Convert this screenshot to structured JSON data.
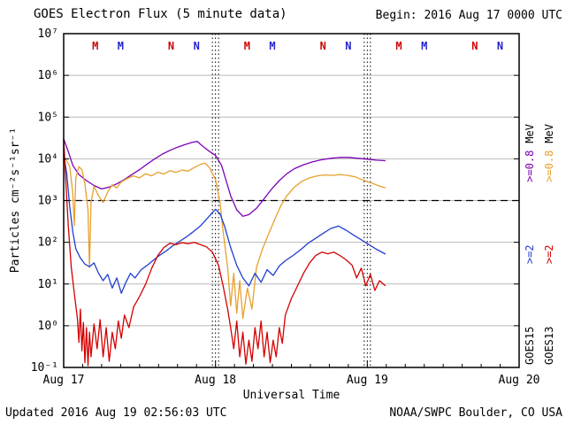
{
  "header": {
    "title": "GOES Electron Flux (5 minute data)",
    "begin_label": "Begin: 2016 Aug 17 0000 UTC"
  },
  "footer": {
    "updated": "Updated 2016 Aug 19 02:56:03 UTC",
    "source": "NOAA/SWPC Boulder, CO USA"
  },
  "chart_data": {
    "type": "line",
    "title": "GOES Electron Flux (5 minute data)",
    "xlabel": "Universal Time",
    "ylabel": "Particles cm⁻²s⁻¹sr⁻¹",
    "x_unit_days_since": "2016 Aug 17 0000 UTC",
    "xlim": [
      0,
      3
    ],
    "y_scale": "log",
    "y_log_range": [
      -1,
      7
    ],
    "grid": true,
    "grid_color": "#b8b8b8",
    "x_ticks": [
      {
        "t": 0,
        "label": "Aug 17"
      },
      {
        "t": 1,
        "label": "Aug 18"
      },
      {
        "t": 2,
        "label": "Aug 19"
      },
      {
        "t": 3,
        "label": "Aug 20"
      }
    ],
    "y_tick_labels": [
      "10⁻¹",
      "10⁰",
      "10¹",
      "10²",
      "10³",
      "10⁴",
      "10⁵",
      "10⁶",
      "10⁷"
    ],
    "threshold": {
      "value": 1000,
      "style": "dashed"
    },
    "day_boundaries": [
      1,
      2
    ],
    "satellite_markers": [
      {
        "t": 0.208,
        "letter": "M",
        "color": "#cc0000"
      },
      {
        "t": 0.375,
        "letter": "M",
        "color": "#2222cc"
      },
      {
        "t": 0.708,
        "letter": "N",
        "color": "#cc0000"
      },
      {
        "t": 0.875,
        "letter": "N",
        "color": "#2222cc"
      },
      {
        "t": 1.208,
        "letter": "M",
        "color": "#cc0000"
      },
      {
        "t": 1.375,
        "letter": "M",
        "color": "#2222cc"
      },
      {
        "t": 1.708,
        "letter": "N",
        "color": "#cc0000"
      },
      {
        "t": 1.875,
        "letter": "N",
        "color": "#2222cc"
      },
      {
        "t": 2.208,
        "letter": "M",
        "color": "#cc0000"
      },
      {
        "t": 2.375,
        "letter": "M",
        "color": "#2222cc"
      },
      {
        "t": 2.708,
        "letter": "N",
        "color": "#cc0000"
      },
      {
        "t": 2.875,
        "letter": "N",
        "color": "#2222cc"
      }
    ],
    "legend": {
      "goes15": {
        "name": "GOES15",
        "ge2": ">=2",
        "ge08": ">=0.8",
        "unit": "MeV",
        "ge2_color": "#1f3fd1",
        "ge08_color": "#7b00b4"
      },
      "goes13": {
        "name": "GOES13",
        "ge2": ">=2",
        "ge08": ">=0.8",
        "unit": "MeV",
        "ge2_color": "#d40000",
        "ge08_color": "#e8a02b"
      }
    },
    "series": [
      {
        "id": "goes15-ge08",
        "name": "GOES15 >=0.8 MeV",
        "color": "#7b00b4",
        "points": [
          [
            0,
            30000
          ],
          [
            0.03,
            15000
          ],
          [
            0.06,
            7000
          ],
          [
            0.1,
            4200
          ],
          [
            0.15,
            3000
          ],
          [
            0.2,
            2300
          ],
          [
            0.25,
            1900
          ],
          [
            0.3,
            2100
          ],
          [
            0.35,
            2500
          ],
          [
            0.4,
            3200
          ],
          [
            0.45,
            4200
          ],
          [
            0.5,
            5500
          ],
          [
            0.55,
            7500
          ],
          [
            0.6,
            10000
          ],
          [
            0.65,
            13000
          ],
          [
            0.7,
            16000
          ],
          [
            0.75,
            19000
          ],
          [
            0.8,
            22000
          ],
          [
            0.85,
            25000
          ],
          [
            0.88,
            26000
          ],
          [
            0.91,
            21000
          ],
          [
            0.95,
            16000
          ],
          [
            1.0,
            12000
          ],
          [
            1.04,
            7000
          ],
          [
            1.07,
            3000
          ],
          [
            1.1,
            1300
          ],
          [
            1.14,
            600
          ],
          [
            1.18,
            420
          ],
          [
            1.22,
            460
          ],
          [
            1.27,
            650
          ],
          [
            1.32,
            1100
          ],
          [
            1.37,
            1900
          ],
          [
            1.42,
            3000
          ],
          [
            1.47,
            4400
          ],
          [
            1.52,
            5800
          ],
          [
            1.58,
            7200
          ],
          [
            1.64,
            8500
          ],
          [
            1.7,
            9500
          ],
          [
            1.76,
            10300
          ],
          [
            1.82,
            10800
          ],
          [
            1.88,
            10800
          ],
          [
            1.94,
            10300
          ],
          [
            2.0,
            9800
          ],
          [
            2.06,
            9300
          ],
          [
            2.12,
            9000
          ]
        ]
      },
      {
        "id": "goes13-ge08",
        "name": "GOES13 >=0.8 MeV",
        "color": "#e8a02b",
        "points": [
          [
            0,
            10500
          ],
          [
            0.02,
            9000
          ],
          [
            0.04,
            6500
          ],
          [
            0.06,
            1500
          ],
          [
            0.07,
            250
          ],
          [
            0.08,
            3500
          ],
          [
            0.1,
            6500
          ],
          [
            0.12,
            5500
          ],
          [
            0.14,
            2500
          ],
          [
            0.16,
            600
          ],
          [
            0.17,
            25
          ],
          [
            0.18,
            900
          ],
          [
            0.2,
            2200
          ],
          [
            0.23,
            1300
          ],
          [
            0.26,
            900
          ],
          [
            0.29,
            1600
          ],
          [
            0.32,
            2400
          ],
          [
            0.35,
            2000
          ],
          [
            0.38,
            2800
          ],
          [
            0.42,
            3400
          ],
          [
            0.46,
            3900
          ],
          [
            0.5,
            3500
          ],
          [
            0.54,
            4400
          ],
          [
            0.58,
            3900
          ],
          [
            0.62,
            4800
          ],
          [
            0.66,
            4300
          ],
          [
            0.7,
            5200
          ],
          [
            0.74,
            4700
          ],
          [
            0.78,
            5400
          ],
          [
            0.82,
            5100
          ],
          [
            0.86,
            6200
          ],
          [
            0.9,
            7300
          ],
          [
            0.93,
            7900
          ],
          [
            0.96,
            6200
          ],
          [
            1.0,
            3200
          ],
          [
            1.03,
            900
          ],
          [
            1.05,
            180
          ],
          [
            1.08,
            25
          ],
          [
            1.1,
            3
          ],
          [
            1.12,
            18
          ],
          [
            1.14,
            2
          ],
          [
            1.16,
            12
          ],
          [
            1.18,
            1.5
          ],
          [
            1.21,
            8
          ],
          [
            1.24,
            2.5
          ],
          [
            1.27,
            25
          ],
          [
            1.31,
            70
          ],
          [
            1.35,
            160
          ],
          [
            1.39,
            350
          ],
          [
            1.43,
            750
          ],
          [
            1.47,
            1300
          ],
          [
            1.52,
            2100
          ],
          [
            1.57,
            2900
          ],
          [
            1.62,
            3500
          ],
          [
            1.67,
            3900
          ],
          [
            1.72,
            4100
          ],
          [
            1.77,
            4000
          ],
          [
            1.82,
            4200
          ],
          [
            1.87,
            4000
          ],
          [
            1.92,
            3700
          ],
          [
            1.97,
            3100
          ],
          [
            2.02,
            2700
          ],
          [
            2.07,
            2300
          ],
          [
            2.12,
            2000
          ]
        ]
      },
      {
        "id": "goes15-ge2",
        "name": "GOES15 >=2 MeV",
        "color": "#1f3fd1",
        "points": [
          [
            0,
            13000
          ],
          [
            0.02,
            4500
          ],
          [
            0.04,
            700
          ],
          [
            0.06,
            180
          ],
          [
            0.08,
            70
          ],
          [
            0.11,
            42
          ],
          [
            0.14,
            30
          ],
          [
            0.17,
            26
          ],
          [
            0.2,
            32
          ],
          [
            0.23,
            18
          ],
          [
            0.26,
            12
          ],
          [
            0.29,
            17
          ],
          [
            0.32,
            8
          ],
          [
            0.35,
            14
          ],
          [
            0.38,
            6
          ],
          [
            0.41,
            11
          ],
          [
            0.44,
            18
          ],
          [
            0.47,
            14
          ],
          [
            0.51,
            22
          ],
          [
            0.55,
            28
          ],
          [
            0.59,
            37
          ],
          [
            0.63,
            48
          ],
          [
            0.67,
            60
          ],
          [
            0.71,
            78
          ],
          [
            0.75,
            98
          ],
          [
            0.8,
            128
          ],
          [
            0.85,
            175
          ],
          [
            0.9,
            245
          ],
          [
            0.95,
            390
          ],
          [
            1.0,
            620
          ],
          [
            1.03,
            480
          ],
          [
            1.06,
            240
          ],
          [
            1.1,
            75
          ],
          [
            1.14,
            28
          ],
          [
            1.18,
            14
          ],
          [
            1.22,
            9
          ],
          [
            1.26,
            18
          ],
          [
            1.3,
            11
          ],
          [
            1.34,
            22
          ],
          [
            1.38,
            16
          ],
          [
            1.42,
            27
          ],
          [
            1.46,
            36
          ],
          [
            1.51,
            48
          ],
          [
            1.56,
            66
          ],
          [
            1.61,
            95
          ],
          [
            1.66,
            125
          ],
          [
            1.71,
            165
          ],
          [
            1.76,
            215
          ],
          [
            1.81,
            245
          ],
          [
            1.86,
            195
          ],
          [
            1.91,
            148
          ],
          [
            1.96,
            115
          ],
          [
            2.01,
            88
          ],
          [
            2.06,
            68
          ],
          [
            2.12,
            52
          ]
        ]
      },
      {
        "id": "goes13-ge2",
        "name": "GOES13 >=2 MeV",
        "color": "#d40000",
        "points": [
          [
            0,
            30000
          ],
          [
            0.015,
            2500
          ],
          [
            0.03,
            250
          ],
          [
            0.05,
            25
          ],
          [
            0.07,
            6
          ],
          [
            0.09,
            1.5
          ],
          [
            0.1,
            0.4
          ],
          [
            0.11,
            2.5
          ],
          [
            0.12,
            0.25
          ],
          [
            0.13,
            1.2
          ],
          [
            0.14,
            0.13
          ],
          [
            0.15,
            0.9
          ],
          [
            0.16,
            0.11
          ],
          [
            0.17,
            0.7
          ],
          [
            0.18,
            0.18
          ],
          [
            0.2,
            1.1
          ],
          [
            0.22,
            0.28
          ],
          [
            0.24,
            1.4
          ],
          [
            0.26,
            0.18
          ],
          [
            0.28,
            0.9
          ],
          [
            0.3,
            0.14
          ],
          [
            0.32,
            0.7
          ],
          [
            0.34,
            0.28
          ],
          [
            0.36,
            1.3
          ],
          [
            0.38,
            0.5
          ],
          [
            0.4,
            1.8
          ],
          [
            0.43,
            0.9
          ],
          [
            0.46,
            2.8
          ],
          [
            0.5,
            5
          ],
          [
            0.54,
            10
          ],
          [
            0.58,
            24
          ],
          [
            0.62,
            48
          ],
          [
            0.66,
            75
          ],
          [
            0.7,
            95
          ],
          [
            0.74,
            88
          ],
          [
            0.78,
            98
          ],
          [
            0.82,
            92
          ],
          [
            0.86,
            99
          ],
          [
            0.9,
            88
          ],
          [
            0.94,
            78
          ],
          [
            0.98,
            58
          ],
          [
            1.02,
            28
          ],
          [
            1.05,
            9
          ],
          [
            1.08,
            2.5
          ],
          [
            1.1,
            0.9
          ],
          [
            1.12,
            0.28
          ],
          [
            1.14,
            1.3
          ],
          [
            1.16,
            0.18
          ],
          [
            1.18,
            0.7
          ],
          [
            1.2,
            0.12
          ],
          [
            1.22,
            0.45
          ],
          [
            1.24,
            0.14
          ],
          [
            1.26,
            0.9
          ],
          [
            1.28,
            0.28
          ],
          [
            1.3,
            1.3
          ],
          [
            1.32,
            0.18
          ],
          [
            1.34,
            0.7
          ],
          [
            1.36,
            0.13
          ],
          [
            1.38,
            0.45
          ],
          [
            1.4,
            0.18
          ],
          [
            1.42,
            0.9
          ],
          [
            1.44,
            0.38
          ],
          [
            1.46,
            1.8
          ],
          [
            1.5,
            4.5
          ],
          [
            1.54,
            9
          ],
          [
            1.58,
            18
          ],
          [
            1.62,
            32
          ],
          [
            1.66,
            48
          ],
          [
            1.7,
            58
          ],
          [
            1.74,
            53
          ],
          [
            1.78,
            58
          ],
          [
            1.82,
            48
          ],
          [
            1.86,
            38
          ],
          [
            1.9,
            28
          ],
          [
            1.93,
            14
          ],
          [
            1.96,
            24
          ],
          [
            1.99,
            9
          ],
          [
            2.02,
            17
          ],
          [
            2.05,
            7
          ],
          [
            2.08,
            12
          ],
          [
            2.12,
            9
          ]
        ]
      }
    ]
  }
}
